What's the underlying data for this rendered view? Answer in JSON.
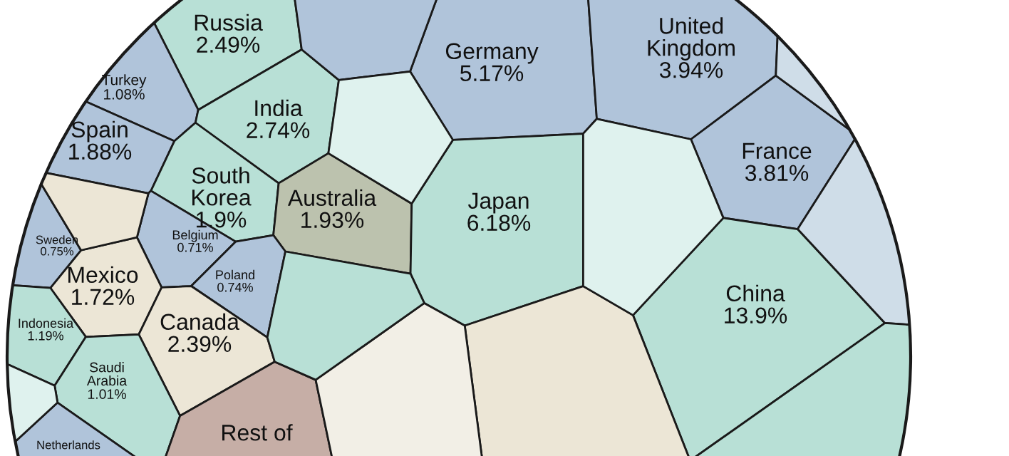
{
  "chart_data": {
    "type": "other",
    "categories": [
      "Russia",
      "Turkey",
      "Spain",
      "India",
      "Germany",
      "United\nKingdom",
      "France",
      "South\nKorea",
      "Australia",
      "Japan",
      "Sweden",
      "Belgium",
      "Poland",
      "Mexico",
      "Canada",
      "China",
      "Indonesia",
      "Saudi\nArabia",
      "Netherlands",
      "Rest of",
      null,
      null,
      null,
      null,
      null,
      null,
      null,
      null,
      null,
      null,
      null
    ],
    "values": [
      2.49,
      1.08,
      1.88,
      2.74,
      5.17,
      3.94,
      3.81,
      1.9,
      1.93,
      6.18,
      0.75,
      0.71,
      0.74,
      1.72,
      2.39,
      13.9,
      1.19,
      1.01,
      null,
      null,
      null,
      null,
      null,
      null,
      null,
      null,
      null,
      null,
      null,
      null,
      null
    ],
    "value_labels": [
      "2.49%",
      "1.08%",
      "1.88%",
      "2.74%",
      "5.17%",
      "3.94%",
      "3.81%",
      "1.9%",
      "1.93%",
      "6.18%",
      "0.75%",
      "0.71%",
      "0.74%",
      "1.72%",
      "2.39%",
      "13.9%",
      "1.19%",
      "1.01%",
      null,
      null,
      null,
      null,
      null,
      null,
      null,
      null,
      null,
      null,
      null,
      null,
      null
    ],
    "colors": [
      "#b8e0d6",
      "#b0c4da",
      "#b0c4da",
      "#b8e0d6",
      "#b0c4da",
      "#b0c4da",
      "#b0c4da",
      "#b8e0d6",
      "#bcc2ae",
      "#b8e0d6",
      "#b0c4da",
      "#b0c4da",
      "#b0c4da",
      "#ece6d6",
      "#ece6d6",
      "#b8e0d6",
      "#b8e0d6",
      "#b8e0d6",
      "#b0c4da",
      "#c6aea6",
      "#b0c4da",
      "#cfdde8",
      "#dff2ee",
      "#cfdde8",
      "#ece6d6",
      "#b8e0d6",
      "#f2efe6",
      "#dff2ee",
      "#b8e0d6",
      "#ece6d6",
      "#dff2ee"
    ]
  }
}
